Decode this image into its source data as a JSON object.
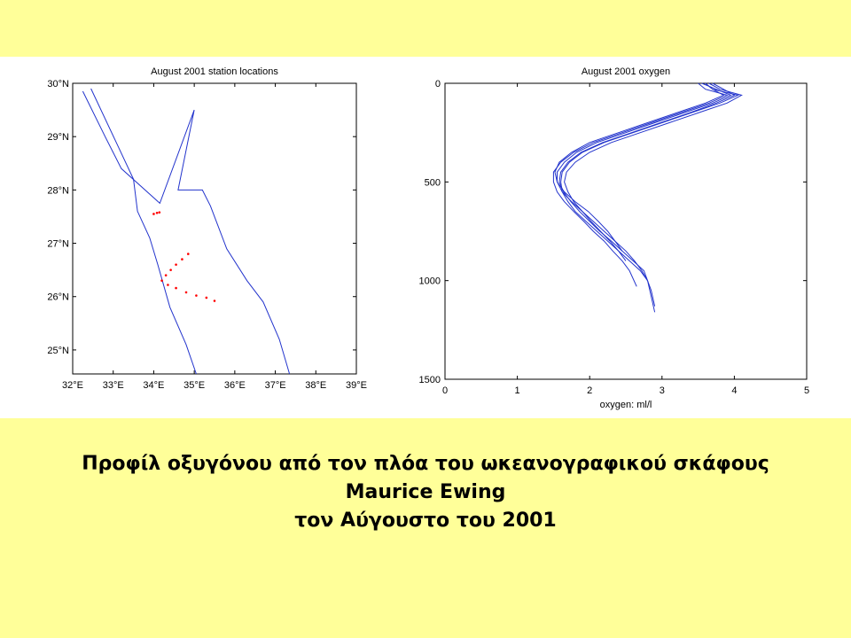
{
  "colors": {
    "background": "#FFFF99",
    "plot_bg": "#FFFFFF",
    "line": "#2233CC",
    "stations": "#FF0000",
    "axis": "#000000"
  },
  "caption": {
    "line1": "Προφίλ οξυγόνου από τον πλόα του ωκεανογραφικού σκάφους",
    "line2": "Maurice Ewing",
    "line3": "τον Αύγουστο του 2001"
  },
  "chart_data": [
    {
      "type": "scatter",
      "title": "August 2001 station locations",
      "xlabel": "",
      "ylabel": "",
      "xlim": [
        32,
        39
      ],
      "ylim": [
        24.55,
        30
      ],
      "x_ticks": [
        32,
        33,
        34,
        35,
        36,
        37,
        38,
        39
      ],
      "y_ticks": [
        25,
        26,
        27,
        28,
        29,
        30
      ],
      "x_tick_labels": [
        "32°E",
        "33°E",
        "34°E",
        "35°E",
        "36°E",
        "37°E",
        "38°E",
        "39°E"
      ],
      "y_tick_labels": [
        "25°N",
        "26°N",
        "27°N",
        "28°N",
        "29°N",
        "30°N"
      ],
      "grid": false,
      "coastlines": [
        [
          [
            32.45,
            29.9
          ],
          [
            33.1,
            28.85
          ],
          [
            33.5,
            28.2
          ],
          [
            33.6,
            27.6
          ],
          [
            33.9,
            27.1
          ],
          [
            34.1,
            26.6
          ],
          [
            34.4,
            25.8
          ],
          [
            34.8,
            25.1
          ],
          [
            35.05,
            24.55
          ]
        ],
        [
          [
            32.25,
            29.85
          ],
          [
            32.8,
            29.0
          ],
          [
            33.2,
            28.4
          ],
          [
            34.15,
            27.75
          ],
          [
            35.0,
            29.5
          ],
          [
            34.6,
            28.0
          ],
          [
            35.2,
            28.0
          ],
          [
            35.4,
            27.7
          ],
          [
            35.8,
            26.9
          ],
          [
            36.3,
            26.3
          ],
          [
            36.7,
            25.9
          ],
          [
            37.1,
            25.2
          ],
          [
            37.35,
            24.55
          ]
        ]
      ],
      "series": [
        {
          "points": [
            [
              34.0,
              27.55
            ],
            [
              34.08,
              27.57
            ],
            [
              34.14,
              27.58
            ],
            [
              34.2,
              26.3
            ],
            [
              34.3,
              26.4
            ],
            [
              34.42,
              26.5
            ],
            [
              34.55,
              26.6
            ],
            [
              34.7,
              26.7
            ],
            [
              34.85,
              26.8
            ],
            [
              34.35,
              26.22
            ],
            [
              34.55,
              26.16
            ],
            [
              34.8,
              26.08
            ],
            [
              35.05,
              26.02
            ],
            [
              35.3,
              25.98
            ],
            [
              35.5,
              25.92
            ]
          ]
        }
      ]
    },
    {
      "type": "line",
      "title": "August 2001 oxygen",
      "xlabel": "oxygen: ml/l",
      "ylabel": "",
      "xlim": [
        0,
        5
      ],
      "ylim": [
        1500,
        0
      ],
      "x_ticks": [
        0,
        1,
        2,
        3,
        4,
        5
      ],
      "y_ticks": [
        0,
        500,
        1000,
        1500
      ],
      "grid": false,
      "y_key": "depth",
      "profiles": [
        {
          "oxygen": [
            3.6,
            3.7,
            4.05,
            3.8,
            3.4,
            3.0,
            2.6,
            2.2,
            1.9,
            1.72,
            1.62,
            1.6,
            1.62,
            1.7,
            1.8,
            1.95,
            2.1,
            2.25,
            2.4,
            2.55,
            2.7,
            2.8,
            2.85,
            2.9
          ],
          "depth": [
            0,
            30,
            60,
            100,
            150,
            200,
            250,
            300,
            350,
            400,
            450,
            500,
            550,
            600,
            650,
            700,
            750,
            800,
            850,
            900,
            950,
            1000,
            1080,
            1160
          ]
        },
        {
          "oxygen": [
            3.55,
            3.75,
            3.95,
            3.7,
            3.3,
            2.9,
            2.5,
            2.1,
            1.82,
            1.65,
            1.55,
            1.55,
            1.62,
            1.75,
            1.9,
            2.05,
            2.2,
            2.35,
            2.5,
            2.62,
            2.72,
            2.8
          ],
          "depth": [
            0,
            30,
            60,
            100,
            150,
            200,
            250,
            300,
            350,
            400,
            450,
            500,
            550,
            600,
            650,
            700,
            750,
            800,
            850,
            900,
            950,
            1000
          ]
        },
        {
          "oxygen": [
            3.65,
            3.8,
            4.1,
            3.9,
            3.5,
            3.1,
            2.7,
            2.3,
            2.0,
            1.8,
            1.68,
            1.65,
            1.7,
            1.78,
            1.9,
            2.02,
            2.15,
            2.28,
            2.4,
            2.5
          ],
          "depth": [
            0,
            30,
            60,
            100,
            150,
            200,
            250,
            300,
            350,
            400,
            450,
            500,
            550,
            600,
            650,
            700,
            750,
            800,
            850,
            900
          ]
        },
        {
          "oxygen": [
            3.5,
            3.6,
            3.9,
            3.65,
            3.25,
            2.85,
            2.45,
            2.05,
            1.78,
            1.6,
            1.5,
            1.5,
            1.55,
            1.65,
            1.78,
            1.92,
            2.05,
            2.2,
            2.32,
            2.45,
            2.55,
            2.65
          ],
          "depth": [
            0,
            30,
            60,
            100,
            150,
            200,
            250,
            300,
            350,
            400,
            450,
            500,
            550,
            600,
            650,
            700,
            750,
            800,
            850,
            900,
            950,
            1030
          ]
        },
        {
          "oxygen": [
            3.7,
            3.85,
            4.0,
            3.75,
            3.38,
            2.98,
            2.58,
            2.18,
            1.88,
            1.7,
            1.6,
            1.58,
            1.64,
            1.74,
            1.86,
            2.0,
            2.14,
            2.3,
            2.45,
            2.6,
            2.75,
            2.85,
            2.9
          ],
          "depth": [
            0,
            30,
            60,
            100,
            150,
            200,
            250,
            300,
            350,
            400,
            450,
            500,
            550,
            600,
            650,
            700,
            750,
            800,
            850,
            900,
            950,
            1050,
            1130
          ]
        },
        {
          "oxygen": [
            3.6,
            3.7,
            3.85,
            3.6,
            3.2,
            2.8,
            2.4,
            2.0,
            1.75,
            1.58,
            1.52,
            1.55,
            1.65,
            1.8,
            1.98,
            2.12,
            2.25,
            2.35,
            2.45
          ],
          "depth": [
            0,
            30,
            60,
            100,
            150,
            200,
            250,
            300,
            350,
            400,
            450,
            500,
            550,
            600,
            650,
            700,
            750,
            800,
            850
          ]
        }
      ]
    }
  ]
}
